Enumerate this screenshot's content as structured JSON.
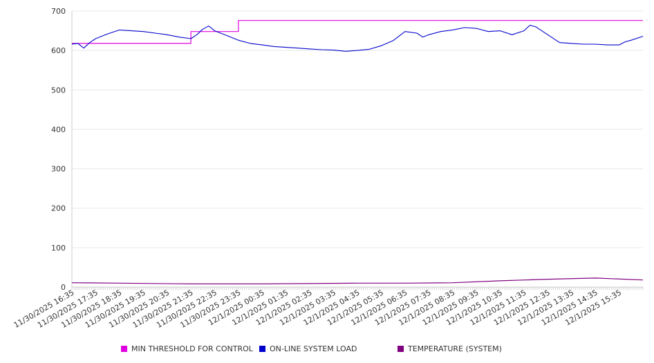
{
  "chart_data": {
    "type": "line",
    "ylim": [
      0,
      700
    ],
    "yticks": [
      0,
      100,
      200,
      300,
      400,
      500,
      600,
      700
    ],
    "grid": true,
    "legend_position": "bottom",
    "x_tick_labels": [
      "11/30/2025 16:35",
      "11/30/2025 17:35",
      "11/30/2025 18:35",
      "11/30/2025 19:35",
      "11/30/2025 20:35",
      "11/30/2025 21:35",
      "11/30/2025 22:35",
      "11/30/2025 23:35",
      "12/1/2025 00:35",
      "12/1/2025 01:35",
      "12/1/2025 02:35",
      "12/1/2025 03:35",
      "12/1/2025 04:35",
      "12/1/2025 05:35",
      "12/1/2025 06:35",
      "12/1/2025 07:35",
      "12/1/2025 08:35",
      "12/1/2025 09:35",
      "12/1/2025 10:35",
      "12/1/2025 11:35",
      "12/1/2025 12:35",
      "12/1/2025 13:35",
      "12/1/2025 14:35",
      "12/1/2025 15:35"
    ],
    "x_range": [
      "11/30/2025 16:35",
      "12/1/2025 16:35"
    ],
    "series": [
      {
        "name": "MIN THRESHOLD FOR CONTROL",
        "color": "#e000e0",
        "points": [
          [
            "11/30/2025 16:35",
            618
          ],
          [
            "11/30/2025 21:35",
            618
          ],
          [
            "11/30/2025 21:35",
            648
          ],
          [
            "11/30/2025 23:35",
            648
          ],
          [
            "11/30/2025 23:35",
            676
          ],
          [
            "12/1/2025 16:35",
            676
          ]
        ]
      },
      {
        "name": "ON-LINE SYSTEM LOAD",
        "color": "#0000cc",
        "points": [
          [
            "11/30/2025 16:35",
            616
          ],
          [
            "11/30/2025 16:50",
            618
          ],
          [
            "11/30/2025 17:05",
            606
          ],
          [
            "11/30/2025 17:20",
            620
          ],
          [
            "11/30/2025 17:35",
            630
          ],
          [
            "11/30/2025 18:05",
            642
          ],
          [
            "11/30/2025 18:35",
            652
          ],
          [
            "11/30/2025 19:05",
            650
          ],
          [
            "11/30/2025 19:35",
            648
          ],
          [
            "11/30/2025 20:05",
            644
          ],
          [
            "11/30/2025 20:35",
            640
          ],
          [
            "11/30/2025 21:05",
            634
          ],
          [
            "11/30/2025 21:35",
            630
          ],
          [
            "11/30/2025 21:50",
            640
          ],
          [
            "11/30/2025 22:05",
            654
          ],
          [
            "11/30/2025 22:20",
            662
          ],
          [
            "11/30/2025 22:35",
            650
          ],
          [
            "11/30/2025 23:05",
            638
          ],
          [
            "11/30/2025 23:35",
            626
          ],
          [
            "12/1/2025 00:05",
            618
          ],
          [
            "12/1/2025 00:35",
            614
          ],
          [
            "12/1/2025 01:05",
            610
          ],
          [
            "12/1/2025 01:35",
            608
          ],
          [
            "12/1/2025 02:05",
            606
          ],
          [
            "12/1/2025 02:35",
            604
          ],
          [
            "12/1/2025 03:05",
            602
          ],
          [
            "12/1/2025 03:35",
            601
          ],
          [
            "12/1/2025 04:05",
            598
          ],
          [
            "12/1/2025 04:35",
            600
          ],
          [
            "12/1/2025 05:05",
            603
          ],
          [
            "12/1/2025 05:35",
            612
          ],
          [
            "12/1/2025 06:05",
            625
          ],
          [
            "12/1/2025 06:35",
            648
          ],
          [
            "12/1/2025 07:05",
            644
          ],
          [
            "12/1/2025 07:20",
            634
          ],
          [
            "12/1/2025 07:35",
            640
          ],
          [
            "12/1/2025 08:05",
            648
          ],
          [
            "12/1/2025 08:35",
            652
          ],
          [
            "12/1/2025 09:05",
            658
          ],
          [
            "12/1/2025 09:35",
            656
          ],
          [
            "12/1/2025 10:05",
            648
          ],
          [
            "12/1/2025 10:35",
            650
          ],
          [
            "12/1/2025 11:05",
            640
          ],
          [
            "12/1/2025 11:35",
            650
          ],
          [
            "12/1/2025 11:50",
            664
          ],
          [
            "12/1/2025 12:05",
            660
          ],
          [
            "12/1/2025 12:35",
            640
          ],
          [
            "12/1/2025 13:05",
            620
          ],
          [
            "12/1/2025 13:35",
            618
          ],
          [
            "12/1/2025 14:05",
            616
          ],
          [
            "12/1/2025 14:35",
            616
          ],
          [
            "12/1/2025 15:05",
            614
          ],
          [
            "12/1/2025 15:35",
            614
          ],
          [
            "12/1/2025 15:50",
            622
          ],
          [
            "12/1/2025 16:05",
            626
          ],
          [
            "12/1/2025 16:35",
            636
          ]
        ]
      },
      {
        "name": "TEMPERATURE (SYSTEM)",
        "color": "#800080",
        "points": [
          [
            "11/30/2025 16:35",
            11
          ],
          [
            "11/30/2025 18:35",
            10
          ],
          [
            "11/30/2025 21:35",
            8
          ],
          [
            "12/1/2025 00:35",
            8
          ],
          [
            "12/1/2025 02:35",
            9
          ],
          [
            "12/1/2025 04:35",
            10
          ],
          [
            "12/1/2025 06:35",
            10
          ],
          [
            "12/1/2025 08:35",
            11
          ],
          [
            "12/1/2025 10:35",
            16
          ],
          [
            "12/1/2025 12:35",
            20
          ],
          [
            "12/1/2025 14:35",
            23
          ],
          [
            "12/1/2025 16:35",
            18
          ]
        ]
      }
    ]
  }
}
